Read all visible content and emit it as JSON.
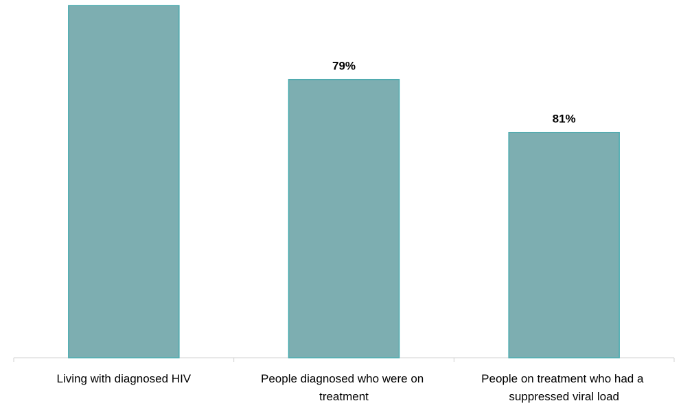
{
  "chart_data": {
    "type": "cascade",
    "categories": [
      "Living with diagnosed HIV",
      "People diagnosed who were on treatment",
      "People on treatment who had a suppressed viral load"
    ],
    "values": [
      100,
      79,
      81
    ],
    "value_labels": [
      null,
      "79%",
      "81%"
    ],
    "color": "#7daeb1",
    "edge_color": "#4aabaf"
  }
}
